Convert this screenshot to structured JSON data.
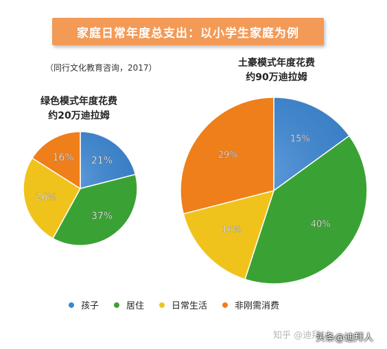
{
  "header": {
    "title": "家庭日常年度总支出：以小学生家庭为例"
  },
  "source_note": "（同行文化教育咨询，2017）",
  "watermark": {
    "zhihu": "知乎 @迪拜村",
    "toutiao": "头条@迪拜人"
  },
  "colors": {
    "孩子": "#3a86d4",
    "居住": "#3aa234",
    "日常生活": "#f0c31c",
    "非刚需消费": "#ef7f1a"
  },
  "legend": [
    {
      "label": "孩子",
      "color": "#3a86d4"
    },
    {
      "label": "居住",
      "color": "#3aa234"
    },
    {
      "label": "日常生活",
      "color": "#f0c31c"
    },
    {
      "label": "非刚需消费",
      "color": "#ef7f1a"
    }
  ],
  "chart_data": [
    {
      "type": "pie",
      "title": "绿色模式年度花费",
      "subtitle": "约20万迪拉姆",
      "categories": [
        "孩子",
        "居住",
        "日常生活",
        "非刚需消费"
      ],
      "values": [
        21,
        37,
        26,
        16
      ],
      "labels": [
        "21%",
        "37%",
        "26%",
        "16%"
      ]
    },
    {
      "type": "pie",
      "title": "土豪模式年度花费",
      "subtitle": "约90万迪拉姆",
      "categories": [
        "孩子",
        "居住",
        "日常生活",
        "非刚需消费"
      ],
      "values": [
        15,
        40,
        16,
        29
      ],
      "labels": [
        "15%",
        "40%",
        "16%",
        "29%"
      ]
    }
  ]
}
